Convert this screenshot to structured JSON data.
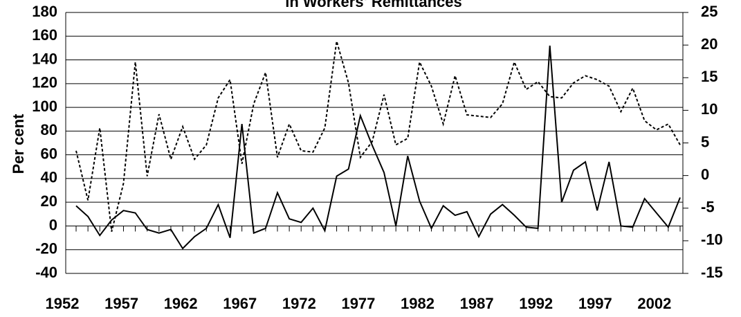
{
  "chart_data": {
    "type": "line",
    "title": "in Workers' Remittances",
    "y_label": "Per cent",
    "x": [
      1952,
      1953,
      1954,
      1955,
      1956,
      1957,
      1958,
      1959,
      1960,
      1961,
      1962,
      1963,
      1964,
      1965,
      1966,
      1967,
      1968,
      1969,
      1970,
      1971,
      1972,
      1973,
      1974,
      1975,
      1976,
      1977,
      1978,
      1979,
      1980,
      1981,
      1982,
      1983,
      1984,
      1985,
      1986,
      1987,
      1988,
      1989,
      1990,
      1991,
      1992,
      1993,
      1994,
      1995,
      1996,
      1997,
      1998,
      1999,
      2000,
      2001,
      2002,
      2003
    ],
    "xlim": [
      1952,
      2003
    ],
    "xticks": [
      1952,
      1957,
      1962,
      1967,
      1972,
      1977,
      1982,
      1987,
      1992,
      1997,
      2002
    ],
    "ylim": [
      -40,
      180
    ],
    "yticks": [
      -40,
      -20,
      0,
      20,
      40,
      60,
      80,
      100,
      120,
      140,
      160,
      180
    ],
    "y2lim": [
      -15,
      25
    ],
    "y2ticks": [
      -15,
      -10,
      -5,
      0,
      5,
      10,
      15,
      20,
      25
    ],
    "grid": true,
    "series": [
      {
        "color": "#000000",
        "style": "solid",
        "axis": "y",
        "values": [
          17,
          8,
          -8,
          5,
          13,
          11,
          -3,
          -6,
          -3,
          -19,
          -9,
          -2,
          18,
          -10,
          86,
          -6,
          -2,
          28,
          6,
          3,
          15,
          -4,
          42,
          48,
          93,
          68,
          45,
          0,
          59,
          21,
          -2,
          17,
          9,
          12,
          -9,
          10,
          18,
          9,
          -1,
          -2,
          152,
          20,
          47,
          54,
          13,
          54,
          0,
          -1,
          23,
          11,
          -1,
          24
        ]
      },
      {
        "color": "#000000",
        "style": "dashed",
        "axis": "y2",
        "values": [
          3.8,
          -3.8,
          7.3,
          -8.6,
          -1.2,
          17.4,
          -0.1,
          9.4,
          2.5,
          7.5,
          2.5,
          4.7,
          11.9,
          14.7,
          1.8,
          11.0,
          15.8,
          2.8,
          7.9,
          3.8,
          3.6,
          7.3,
          20.6,
          14.2,
          2.8,
          5.2,
          12.4,
          4.7,
          5.7,
          17.4,
          13.7,
          7.9,
          15.3,
          9.3,
          9.1,
          8.9,
          11.0,
          17.4,
          13.2,
          14.4,
          12.1,
          11.9,
          14.2,
          15.3,
          14.7,
          13.7,
          9.8,
          13.4,
          8.4,
          7.0,
          7.9,
          4.7
        ]
      }
    ]
  }
}
